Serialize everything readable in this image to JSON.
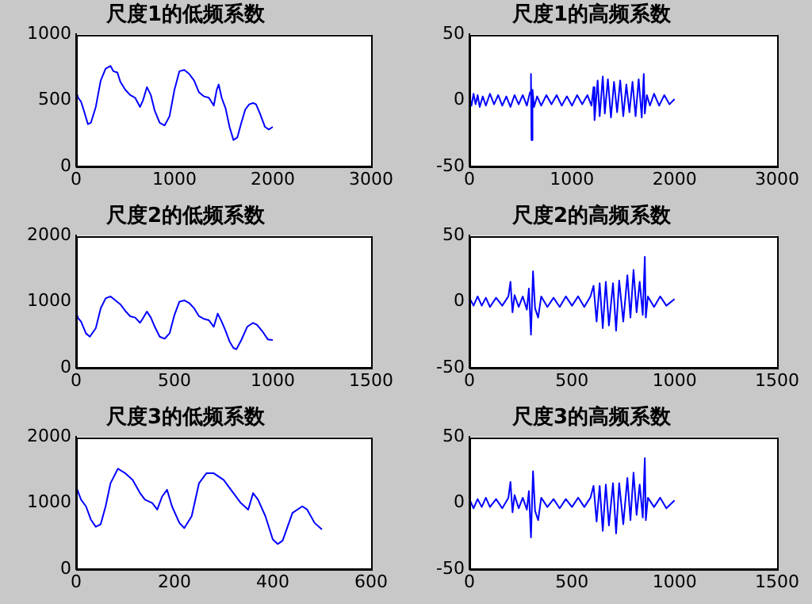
{
  "chart_data": [
    {
      "type": "line",
      "title": "尺度1的低频系数",
      "xlim": [
        0,
        3000
      ],
      "xticks": [
        0,
        1000,
        2000,
        3000
      ],
      "ylim": [
        0,
        1000
      ],
      "yticks": [
        0,
        500,
        1000
      ],
      "grid": false,
      "legend": false,
      "marker": "none",
      "line_style": "solid",
      "series": [
        {
          "color": "#0000ff",
          "x": [
            0,
            20,
            50,
            80,
            120,
            150,
            200,
            250,
            300,
            350,
            380,
            420,
            450,
            500,
            550,
            600,
            650,
            680,
            720,
            760,
            800,
            850,
            900,
            950,
            1000,
            1050,
            1100,
            1150,
            1200,
            1250,
            1300,
            1350,
            1400,
            1430,
            1450,
            1480,
            1520,
            1560,
            1600,
            1640,
            1680,
            1720,
            1760,
            1800,
            1830,
            1870,
            1920,
            1960,
            2000
          ],
          "values": [
            570,
            520,
            490,
            420,
            320,
            330,
            450,
            650,
            740,
            760,
            720,
            710,
            640,
            580,
            540,
            520,
            450,
            500,
            600,
            540,
            420,
            330,
            310,
            380,
            580,
            720,
            730,
            700,
            650,
            560,
            530,
            520,
            460,
            580,
            620,
            520,
            440,
            300,
            200,
            220,
            330,
            430,
            470,
            480,
            470,
            400,
            300,
            280,
            300
          ]
        }
      ]
    },
    {
      "type": "line",
      "title": "尺度1的高频系数",
      "xlim": [
        0,
        3000
      ],
      "xticks": [
        0,
        1000,
        2000,
        3000
      ],
      "ylim": [
        -50,
        50
      ],
      "yticks": [
        -50,
        0,
        50
      ],
      "grid": false,
      "legend": false,
      "marker": "none",
      "line_style": "solid",
      "series": [
        {
          "color": "#0000ff",
          "x": [
            0,
            20,
            40,
            60,
            80,
            100,
            130,
            160,
            200,
            240,
            280,
            320,
            360,
            400,
            440,
            480,
            520,
            560,
            590,
            600,
            605,
            615,
            630,
            660,
            700,
            750,
            800,
            850,
            900,
            950,
            1000,
            1050,
            1100,
            1150,
            1190,
            1210,
            1220,
            1250,
            1270,
            1300,
            1320,
            1350,
            1380,
            1410,
            1440,
            1470,
            1500,
            1530,
            1560,
            1590,
            1620,
            1650,
            1680,
            1700,
            1710,
            1730,
            1760,
            1800,
            1850,
            1900,
            1950,
            2000
          ],
          "values": [
            3,
            -4,
            5,
            -3,
            4,
            -5,
            3,
            -4,
            5,
            -3,
            4,
            -4,
            3,
            -5,
            4,
            -3,
            4,
            -4,
            6,
            20,
            -30,
            8,
            -5,
            3,
            -4,
            4,
            -3,
            4,
            -4,
            3,
            -4,
            4,
            -3,
            4,
            -4,
            10,
            -15,
            15,
            -12,
            18,
            -10,
            16,
            -13,
            14,
            -9,
            15,
            -12,
            12,
            -9,
            14,
            -12,
            16,
            -13,
            20,
            -10,
            4,
            -4,
            5,
            -4,
            4,
            -3,
            1
          ]
        }
      ]
    },
    {
      "type": "line",
      "title": "尺度2的低频系数",
      "xlim": [
        0,
        1500
      ],
      "xticks": [
        0,
        500,
        1000,
        1500
      ],
      "ylim": [
        0,
        2000
      ],
      "yticks": [
        0,
        1000,
        2000
      ],
      "grid": false,
      "legend": false,
      "marker": "none",
      "line_style": "solid",
      "series": [
        {
          "color": "#0000ff",
          "x": [
            0,
            10,
            25,
            50,
            70,
            100,
            125,
            150,
            175,
            200,
            225,
            250,
            275,
            300,
            325,
            340,
            360,
            380,
            400,
            425,
            450,
            475,
            500,
            525,
            550,
            575,
            600,
            625,
            650,
            675,
            700,
            720,
            740,
            760,
            780,
            800,
            815,
            840,
            870,
            900,
            920,
            950,
            975,
            1000
          ],
          "values": [
            850,
            750,
            700,
            520,
            470,
            600,
            900,
            1050,
            1080,
            1020,
            960,
            860,
            780,
            760,
            680,
            750,
            850,
            760,
            620,
            470,
            440,
            520,
            800,
            1000,
            1020,
            980,
            900,
            780,
            740,
            720,
            620,
            820,
            700,
            560,
            400,
            300,
            280,
            420,
            620,
            680,
            650,
            540,
            430,
            420
          ]
        }
      ]
    },
    {
      "type": "line",
      "title": "尺度2的高频系数",
      "xlim": [
        0,
        1500
      ],
      "xticks": [
        0,
        500,
        1000,
        1500
      ],
      "ylim": [
        -50,
        50
      ],
      "yticks": [
        -50,
        0,
        50
      ],
      "grid": false,
      "legend": false,
      "marker": "none",
      "line_style": "solid",
      "series": [
        {
          "color": "#0000ff",
          "x": [
            0,
            20,
            40,
            60,
            80,
            100,
            130,
            160,
            190,
            200,
            210,
            220,
            240,
            260,
            280,
            290,
            300,
            310,
            320,
            335,
            350,
            380,
            410,
            440,
            470,
            500,
            530,
            560,
            590,
            605,
            620,
            635,
            650,
            665,
            680,
            700,
            715,
            730,
            750,
            770,
            785,
            800,
            815,
            830,
            845,
            855,
            860,
            870,
            900,
            930,
            960,
            1000
          ],
          "values": [
            3,
            -3,
            4,
            -3,
            3,
            -4,
            3,
            -3,
            4,
            15,
            -8,
            5,
            -4,
            4,
            -6,
            10,
            -25,
            23,
            -5,
            -12,
            4,
            -4,
            3,
            -4,
            4,
            -3,
            4,
            -4,
            4,
            12,
            -15,
            14,
            -20,
            15,
            -18,
            14,
            -22,
            16,
            -15,
            20,
            -12,
            24,
            -8,
            15,
            -10,
            34,
            -12,
            4,
            -4,
            4,
            -3,
            2
          ]
        }
      ]
    },
    {
      "type": "line",
      "title": "尺度3的低频系数",
      "xlim": [
        0,
        600
      ],
      "xticks": [
        0,
        200,
        400,
        600
      ],
      "ylim": [
        0,
        2000
      ],
      "yticks": [
        0,
        1000,
        2000
      ],
      "grid": false,
      "legend": false,
      "marker": "none",
      "line_style": "solid",
      "series": [
        {
          "color": "#0000ff",
          "x": [
            0,
            10,
            20,
            30,
            40,
            50,
            60,
            70,
            85,
            100,
            115,
            130,
            140,
            155,
            165,
            175,
            185,
            195,
            210,
            220,
            235,
            250,
            265,
            280,
            300,
            320,
            335,
            350,
            360,
            370,
            385,
            400,
            410,
            420,
            440,
            460,
            470,
            485,
            500
          ],
          "values": [
            1250,
            1050,
            950,
            750,
            640,
            680,
            950,
            1300,
            1520,
            1450,
            1350,
            1150,
            1050,
            1000,
            900,
            1100,
            1200,
            950,
            700,
            620,
            800,
            1300,
            1450,
            1450,
            1350,
            1150,
            1000,
            900,
            1150,
            1050,
            800,
            450,
            380,
            430,
            850,
            950,
            900,
            700,
            600
          ]
        }
      ]
    },
    {
      "type": "line",
      "title": "尺度3的高频系数",
      "xlim": [
        0,
        1500
      ],
      "xticks": [
        0,
        500,
        1000,
        1500
      ],
      "ylim": [
        -50,
        50
      ],
      "yticks": [
        -50,
        0,
        50
      ],
      "grid": false,
      "legend": false,
      "marker": "none",
      "line_style": "solid",
      "series": [
        {
          "color": "#0000ff",
          "x": [
            0,
            20,
            40,
            60,
            80,
            100,
            130,
            160,
            190,
            200,
            210,
            220,
            240,
            260,
            280,
            290,
            300,
            310,
            320,
            335,
            350,
            380,
            410,
            440,
            470,
            500,
            530,
            560,
            590,
            605,
            620,
            635,
            650,
            665,
            680,
            700,
            715,
            730,
            750,
            770,
            785,
            800,
            815,
            830,
            845,
            855,
            860,
            870,
            900,
            930,
            960,
            1000
          ],
          "values": [
            3,
            -4,
            3,
            -3,
            4,
            -3,
            3,
            -4,
            4,
            16,
            -7,
            6,
            -4,
            4,
            -5,
            9,
            -26,
            24,
            -6,
            -13,
            4,
            -3,
            3,
            -4,
            3,
            -3,
            4,
            -3,
            4,
            13,
            -14,
            13,
            -21,
            14,
            -17,
            15,
            -23,
            15,
            -16,
            19,
            -13,
            23,
            -9,
            14,
            -11,
            34,
            -13,
            4,
            -3,
            4,
            -4,
            2
          ]
        }
      ]
    }
  ]
}
